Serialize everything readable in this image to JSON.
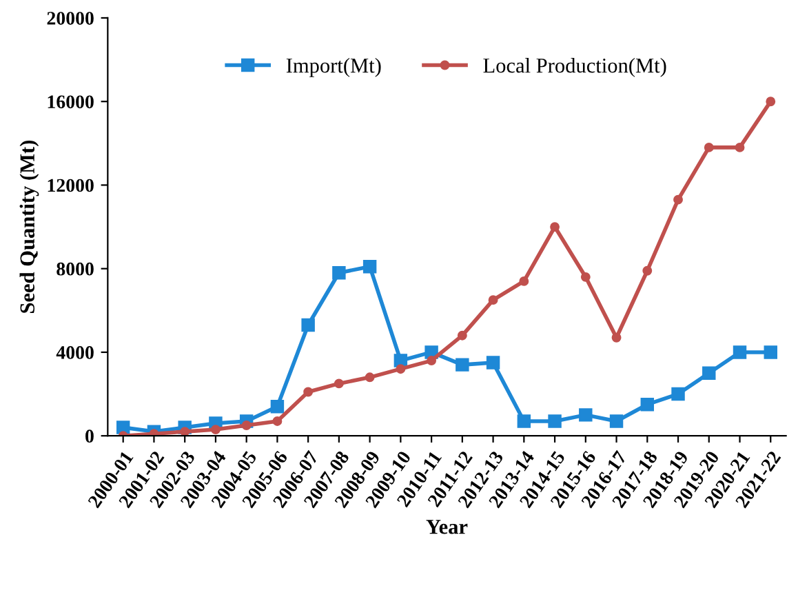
{
  "chart_data": {
    "type": "line",
    "xlabel": "Year",
    "ylabel": "Seed Quantity (Mt)",
    "categories": [
      "2000-01",
      "2001-02",
      "2002-03",
      "2003-04",
      "2004-05",
      "2005-06",
      "2006-07",
      "2007-08",
      "2008-09",
      "2009-10",
      "2010-11",
      "2011-12",
      "2012-13",
      "2013-14",
      "2014-15",
      "2015-16",
      "2016-17",
      "2017-18",
      "2018-19",
      "2019-20",
      "2020-21",
      "2021-22"
    ],
    "series": [
      {
        "name": "Import(Mt)",
        "color": "#1e88d6",
        "marker": "square",
        "values": [
          400,
          200,
          400,
          600,
          700,
          1400,
          5300,
          7800,
          8100,
          3600,
          4000,
          3400,
          3500,
          700,
          700,
          1000,
          700,
          1500,
          2000,
          3000,
          4000,
          4000
        ]
      },
      {
        "name": "Local Production(Mt)",
        "color": "#c0504d",
        "marker": "circle",
        "values": [
          0,
          100,
          200,
          300,
          500,
          700,
          2100,
          2500,
          2800,
          3200,
          3600,
          4800,
          6500,
          7400,
          10000,
          7600,
          4700,
          7900,
          11300,
          13800,
          13800,
          16000
        ]
      }
    ],
    "ylim": [
      0,
      20000
    ],
    "yticks": [
      0,
      4000,
      8000,
      12000,
      16000,
      20000
    ],
    "grid": false,
    "legend": "top",
    "line_style": "solid"
  }
}
